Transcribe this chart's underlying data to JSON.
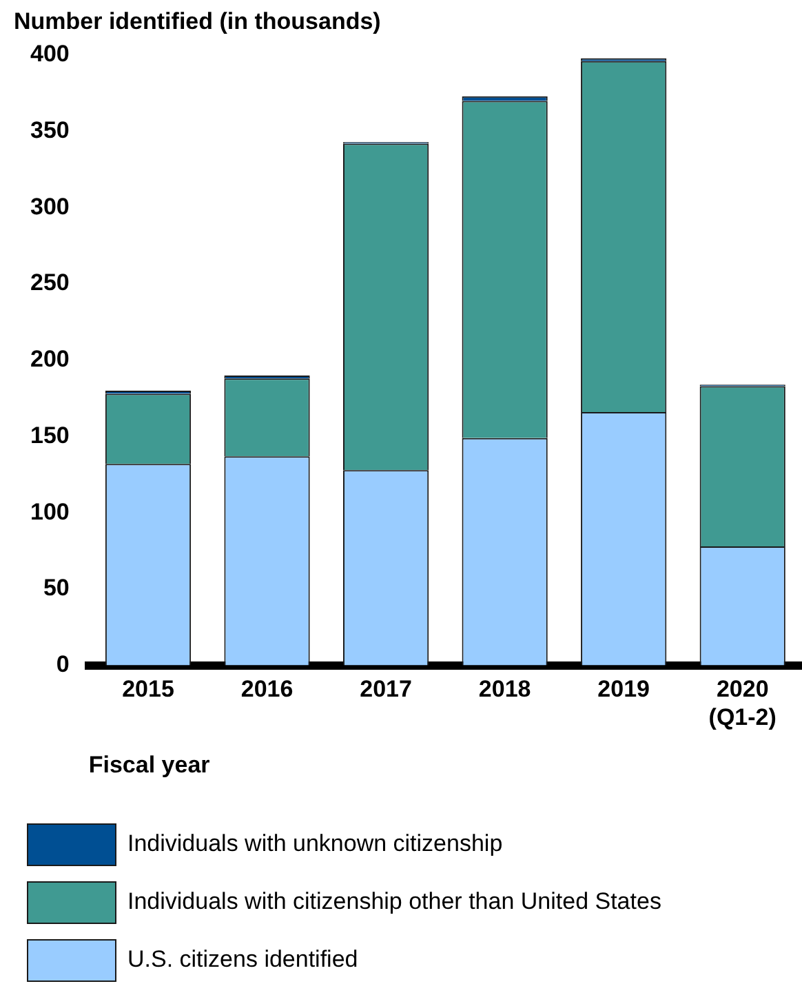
{
  "chart_data": {
    "type": "bar",
    "stacked": true,
    "ylabel": "Number identified (in thousands)",
    "xlabel": "Fiscal year",
    "categories": [
      "2015",
      "2016",
      "2017",
      "2018",
      "2019",
      "2020 (Q1-2)"
    ],
    "series": [
      {
        "name": "U.S. citizens identified",
        "color": "#99ccff",
        "values": [
          132,
          137,
          128,
          149,
          166,
          78
        ]
      },
      {
        "name": "Individuals with citizenship other than United States",
        "color": "#409a92",
        "values": [
          46,
          51,
          214,
          221,
          230,
          105
        ]
      },
      {
        "name": "Individuals with unknown citizenship",
        "color": "#004f93",
        "values": [
          2,
          2,
          1,
          3,
          2,
          1
        ]
      }
    ],
    "ylim": [
      0,
      400
    ],
    "yticks": [
      0,
      50,
      100,
      150,
      200,
      250,
      300,
      350,
      400
    ],
    "grid": false,
    "legend": "bottom"
  }
}
